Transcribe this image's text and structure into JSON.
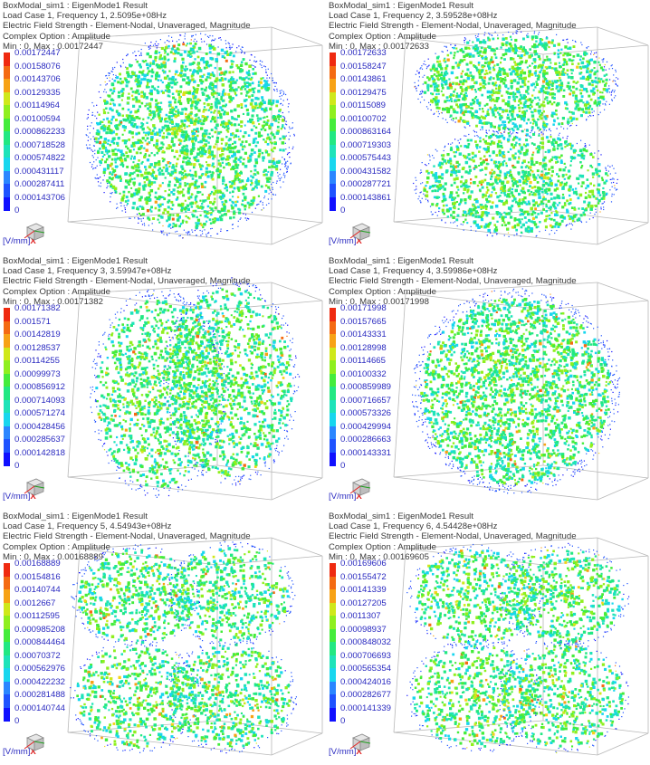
{
  "colors": {
    "scale": [
      "#1010ff",
      "#1f53ff",
      "#2b86ff",
      "#20b2ff",
      "#18d6ee",
      "#1ee3b9",
      "#22e882",
      "#44ec3c",
      "#8fef1e",
      "#cfe81a",
      "#f5d21a",
      "#f7a215",
      "#f46a12",
      "#ef2a10"
    ],
    "label_text": "#2a2ac0",
    "header_text": "#3a3a3a"
  },
  "panels": [
    {
      "title": "BoxModal_sim1 : EigenMode1 Result",
      "load_case": "Load Case 1, Frequency 1, 2.5095e+08Hz",
      "field": "Electric Field Strength - Element-Nodal, Unaveraged, Magnitude",
      "complex_option": "Complex Option : Amplitude",
      "min_max": "Min : 0, Max : 0.00172447",
      "legend": [
        "0.00172447",
        "0.00158076",
        "0.00143706",
        "0.00129335",
        "0.00114964",
        "0.00100594",
        "0.000862233",
        "0.000718528",
        "0.000574822",
        "0.000431117",
        "0.000287411",
        "0.000143706",
        "0"
      ],
      "units": "[V/mm]",
      "axis": "X",
      "mode": 1
    },
    {
      "title": "BoxModal_sim1 : EigenMode1 Result",
      "load_case": "Load Case 1, Frequency 2, 3.59528e+08Hz",
      "field": "Electric Field Strength - Element-Nodal, Unaveraged, Magnitude",
      "complex_option": "Complex Option : Amplitude",
      "min_max": "Min : 0, Max : 0.00172633",
      "legend": [
        "0.00172633",
        "0.00158247",
        "0.00143861",
        "0.00129475",
        "0.00115089",
        "0.00100702",
        "0.000863164",
        "0.000719303",
        "0.000575443",
        "0.000431582",
        "0.000287721",
        "0.000143861",
        "0"
      ],
      "units": "[V/mm]",
      "axis": "X",
      "mode": 2
    },
    {
      "title": "BoxModal_sim1 : EigenMode1 Result",
      "load_case": "Load Case 1, Frequency 3, 3.59947e+08Hz",
      "field": "Electric Field Strength - Element-Nodal, Unaveraged, Magnitude",
      "complex_option": "Complex Option : Amplitude",
      "min_max": "Min : 0, Max : 0.00171382",
      "legend": [
        "0.00171382",
        "0.001571",
        "0.00142819",
        "0.00128537",
        "0.00114255",
        "0.00099973",
        "0.000856912",
        "0.000714093",
        "0.000571274",
        "0.000428456",
        "0.000285637",
        "0.000142818",
        "0"
      ],
      "units": "[V/mm]",
      "axis": "X",
      "mode": 3
    },
    {
      "title": "BoxModal_sim1 : EigenMode1 Result",
      "load_case": "Load Case 1, Frequency 4, 3.59986e+08Hz",
      "field": "Electric Field Strength - Element-Nodal, Unaveraged, Magnitude",
      "complex_option": "Complex Option : Amplitude",
      "min_max": "Min : 0, Max : 0.00171998",
      "legend": [
        "0.00171998",
        "0.00157665",
        "0.00143331",
        "0.00128998",
        "0.00114665",
        "0.00100332",
        "0.000859989",
        "0.000716657",
        "0.000573326",
        "0.000429994",
        "0.000286663",
        "0.000143331",
        "0"
      ],
      "units": "[V/mm]",
      "axis": "X",
      "mode": 4
    },
    {
      "title": "BoxModal_sim1 : EigenMode1 Result",
      "load_case": "Load Case 1, Frequency 5, 4.54943e+08Hz",
      "field": "Electric Field Strength - Element-Nodal, Unaveraged, Magnitude",
      "complex_option": "Complex Option : Amplitude",
      "min_max": "Min : 0, Max : 0.00168889",
      "legend": [
        "0.00168889",
        "0.00154816",
        "0.00140744",
        "0.0012667",
        "0.00112595",
        "0.000985208",
        "0.000844464",
        "0.00070372",
        "0.000562976",
        "0.000422232",
        "0.000281488",
        "0.000140744",
        "0"
      ],
      "units": "[V/mm]",
      "axis": "X",
      "mode": 5
    },
    {
      "title": "BoxModal_sim1 : EigenMode1 Result",
      "load_case": "Load Case 1, Frequency 6, 4.54428e+08Hz",
      "field": "Electric Field Strength - Element-Nodal, Unaveraged, Magnitude",
      "complex_option": "Complex Option : Amplitude",
      "min_max": "Min : 0, Max : 0.00169605",
      "legend": [
        "0.00169606",
        "0.00155472",
        "0.00141339",
        "0.00127205",
        "0.0011307",
        "0.00098937",
        "0.000848032",
        "0.000706693",
        "0.000565354",
        "0.000424016",
        "0.000282677",
        "0.000141339",
        "0"
      ],
      "units": "[V/mm]",
      "axis": "X",
      "mode": 6
    }
  ]
}
